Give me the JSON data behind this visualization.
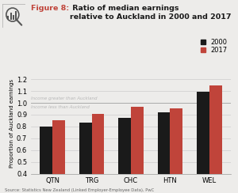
{
  "title_figure": "Figure 8:",
  "title_rest": " Ratio of median earnings\nrelative to Auckland in 2000 and 2017",
  "categories": [
    "QTN",
    "TRG",
    "CHC",
    "HTN",
    "WEL"
  ],
  "values_2000": [
    0.8,
    0.835,
    0.87,
    0.92,
    1.095
  ],
  "values_2017": [
    0.855,
    0.905,
    0.965,
    0.955,
    1.145
  ],
  "color_2000": "#1a1a1a",
  "color_2017": "#c0443a",
  "bar_width": 0.32,
  "ylim": [
    0.4,
    1.25
  ],
  "yticks": [
    0.4,
    0.5,
    0.6,
    0.7,
    0.8,
    0.9,
    1.0,
    1.1,
    1.2
  ],
  "ylabel": "Proportion of Auckland earnings",
  "legend_2000": "2000",
  "legend_2017": "2017",
  "annotation_above": "Income greater than Auckland",
  "annotation_below": "Income less than Auckland",
  "source_text": "Source: Statistics New Zealand (Linked Employer-Employee Data), PwC",
  "title_color": "#c0443a",
  "title_rest_color": "#1a1a1a",
  "bg_color": "#edecea",
  "grid_color": "#cccccc",
  "annotation_color": "#b8b8b8"
}
